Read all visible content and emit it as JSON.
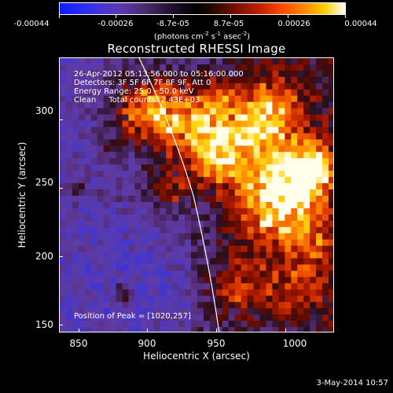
{
  "colorbar": {
    "tick_labels": [
      "-0.00044",
      "-0.00026",
      "-8.7e-05",
      "8.7e-05",
      "0.00026",
      "0.00044"
    ],
    "units_prefix": "(photons cm",
    "units_sup1": "-2",
    "units_mid1": " s",
    "units_sup2": "-1",
    "units_mid2": " asec",
    "units_sup3": "-2",
    "units_suffix": ")"
  },
  "title": "Reconstructed RHESSI Image",
  "info": {
    "time_range": "26-Apr-2012 05:13:56.000 to 05:16:00.000",
    "detectors": "Detectors: 3F 5F 6F 7F 8F 9F, Att 0",
    "energy_range": "Energy Range: 25.0 - 50.0 keV",
    "algorithm": "Clean     Total counts: 2.43E+03"
  },
  "peak_position": "Position of Peak = [1020,257]",
  "x_axis": {
    "label": "Heliocentric X (arcsec)",
    "tick_labels": [
      "850",
      "900",
      "950",
      "1000"
    ]
  },
  "y_axis": {
    "label": "Heliocentric Y (arcsec)",
    "tick_labels": [
      "150",
      "200",
      "250",
      "300"
    ]
  },
  "date_stamp": "3-May-2014 10:57",
  "colors": {
    "limb_line": "#ffffff",
    "background": "#000000"
  }
}
